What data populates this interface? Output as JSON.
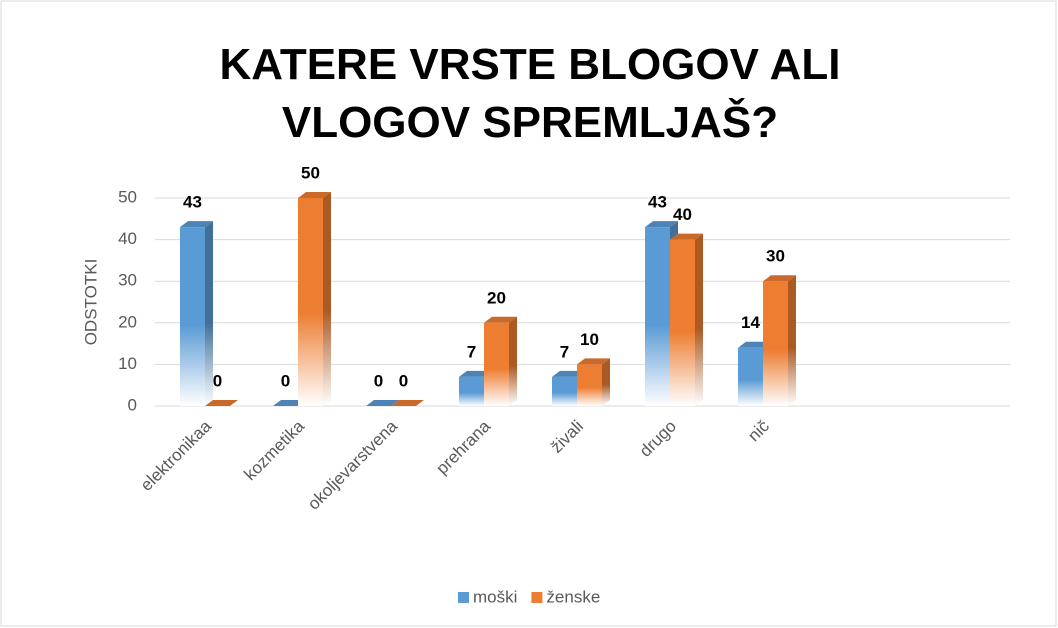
{
  "chart_data": {
    "type": "bar3d",
    "title": "KATERE VRSTE BLOGOV ALI VLOGOV SPREMLJAŠ?",
    "ylabel": "ODSTOTKI",
    "categories": [
      "elektronikaa",
      "kozmetika",
      "okoljevarstvena",
      "prehrana",
      "živali",
      "drugo",
      "nič"
    ],
    "series": [
      {
        "name": "moški",
        "color": "#5b9bd5",
        "values": [
          43,
          0,
          0,
          7,
          7,
          43,
          14
        ]
      },
      {
        "name": "ženske",
        "color": "#ed7d31",
        "values": [
          0,
          50,
          0,
          20,
          10,
          40,
          30
        ]
      }
    ],
    "ylim": [
      0,
      50
    ],
    "yticks": [
      0,
      10,
      20,
      30,
      40,
      50
    ],
    "grid": true,
    "legend": "bottom"
  }
}
